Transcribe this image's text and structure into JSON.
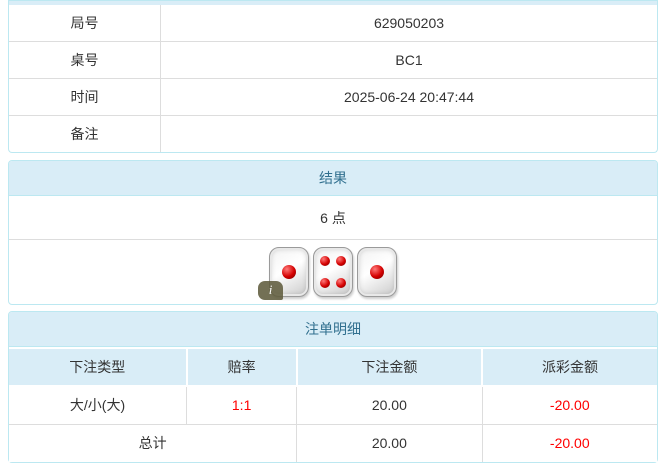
{
  "colors": {
    "panel_border": "#bce8f1",
    "heading_bg": "#d9edf7",
    "heading_text": "#31708f",
    "row_border": "#dddddd",
    "text": "#333333",
    "negative_text": "#ff0000",
    "pip_red": "#d40000",
    "info_badge_bg": "#605c3e"
  },
  "info_table": {
    "rows": [
      {
        "label": "局号",
        "value": "629050203"
      },
      {
        "label": "桌号",
        "value": "BC1"
      },
      {
        "label": "时间",
        "value": "2025-06-24 20:47:44"
      },
      {
        "label": "备注",
        "value": ""
      }
    ]
  },
  "result_panel": {
    "title": "结果",
    "points": "6 点",
    "dice": [
      1,
      4,
      1
    ],
    "info_icon_glyph": "i"
  },
  "bets_panel": {
    "title": "注单明细",
    "columns": [
      "下注类型",
      "赔率",
      "下注金额",
      "派彩金额"
    ],
    "rows": [
      {
        "bet_type": "大/小(大)",
        "odds": "1:1",
        "bet_amount": "20.00",
        "payout": "-20.00"
      }
    ],
    "total": {
      "label": "总计",
      "bet_amount": "20.00",
      "payout": "-20.00"
    }
  }
}
